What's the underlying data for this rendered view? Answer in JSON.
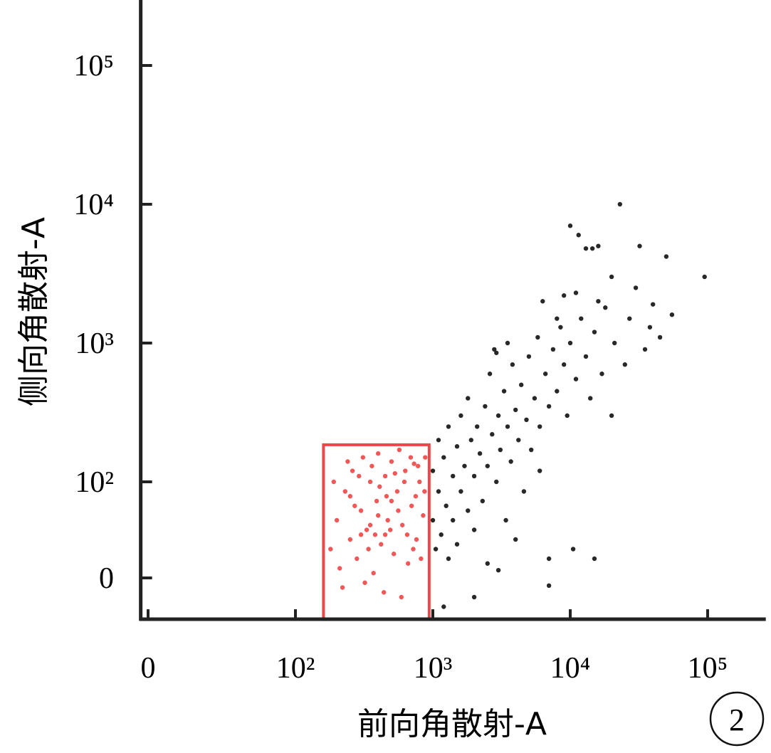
{
  "chart_data": {
    "type": "scatter",
    "x_label": "前向角散射-A",
    "y_label": "侧向角散射-A",
    "annotation": "2",
    "scale": "biexponential",
    "xlim": [
      -5,
      265000
    ],
    "ylim": [
      -43,
      300000
    ],
    "xticks": [
      0,
      {
        "value": 100,
        "label": "10²"
      },
      {
        "value": 1000,
        "label": "10³"
      },
      {
        "value": 10000,
        "label": "10⁴"
      },
      {
        "value": 100000,
        "label": "10⁵"
      }
    ],
    "yticks": [
      0,
      {
        "value": 100,
        "label": "10²"
      },
      {
        "value": 1000,
        "label": "10³"
      },
      {
        "value": 10000,
        "label": "10⁴"
      },
      {
        "value": 100000,
        "label": "10⁵"
      }
    ],
    "gate": {
      "x": [
        160,
        940
      ],
      "y": [
        -43,
        185
      ],
      "color": "#ee4646"
    },
    "series": [
      {
        "color": "#111111",
        "x": [
          1000,
          1000,
          1050,
          1100,
          1100,
          1150,
          1200,
          1250,
          1300,
          1300,
          1400,
          1400,
          1500,
          1500,
          1600,
          1600,
          1700,
          1800,
          1800,
          1900,
          2000,
          2000,
          2100,
          2200,
          2300,
          2400,
          2500,
          2600,
          2700,
          2800,
          2900,
          3000,
          3100,
          3300,
          3400,
          3500,
          3700,
          3800,
          4000,
          4200,
          4400,
          4600,
          4800,
          5000,
          5200,
          5500,
          5800,
          6000,
          6300,
          6600,
          7000,
          7000,
          7500,
          8000,
          8500,
          9000,
          9500,
          10000,
          10500,
          11000,
          11000,
          12000,
          13000,
          14000,
          15000,
          16000,
          17000,
          18000,
          20000,
          21000,
          23000,
          25000,
          27000,
          30000,
          32000,
          35000,
          38000,
          40000,
          45000,
          50000,
          55000,
          95000,
          10000,
          11500,
          13000,
          14500,
          3500,
          2900,
          8000,
          6000,
          4000,
          3000,
          2000,
          7000,
          15000,
          1200,
          2500,
          20000,
          16000,
          9000
        ],
        "y": [
          60,
          120,
          30,
          90,
          200,
          45,
          150,
          75,
          250,
          20,
          110,
          60,
          180,
          35,
          300,
          90,
          130,
          70,
          400,
          200,
          110,
          50,
          250,
          160,
          80,
          350,
          130,
          600,
          220,
          900,
          100,
          300,
          170,
          450,
          60,
          250,
          140,
          700,
          330,
          200,
          500,
          90,
          280,
          800,
          170,
          400,
          1100,
          250,
          2000,
          600,
          350,
          20,
          900,
          450,
          1300,
          700,
          300,
          1000,
          30,
          2300,
          550,
          1500,
          800,
          400,
          1200,
          5000,
          600,
          1800,
          3000,
          1000,
          10000,
          700,
          1500,
          2500,
          5000,
          900,
          1300,
          1900,
          1100,
          4200,
          1600,
          3000,
          7000,
          6000,
          4800,
          4800,
          1000,
          850,
          1500,
          120,
          40,
          8,
          -20,
          -8,
          20,
          -30,
          15,
          300,
          2000,
          2200
        ]
      },
      {
        "color": "#ee4646",
        "x": [
          180,
          200,
          210,
          230,
          250,
          260,
          280,
          300,
          310,
          330,
          350,
          370,
          390,
          400,
          420,
          450,
          470,
          500,
          520,
          550,
          570,
          600,
          630,
          660,
          700,
          730,
          760,
          800,
          850,
          880,
          190,
          220,
          240,
          270,
          290,
          320,
          340,
          360,
          380,
          410,
          440,
          460,
          490,
          530,
          560,
          590,
          620,
          650,
          690,
          720,
          750,
          780,
          820,
          870,
          300,
          400,
          500,
          250,
          350,
          450
        ],
        "y": [
          30,
          60,
          10,
          90,
          40,
          120,
          20,
          70,
          150,
          50,
          100,
          5,
          80,
          160,
          35,
          110,
          60,
          140,
          25,
          90,
          170,
          55,
          120,
          15,
          75,
          135,
          40,
          100,
          65,
          150,
          100,
          -10,
          140,
          75,
          110,
          -5,
          30,
          130,
          45,
          95,
          -15,
          85,
          50,
          115,
          70,
          -20,
          100,
          45,
          150,
          30,
          85,
          130,
          20,
          90,
          45,
          65,
          80,
          85,
          55,
          45
        ]
      }
    ]
  }
}
